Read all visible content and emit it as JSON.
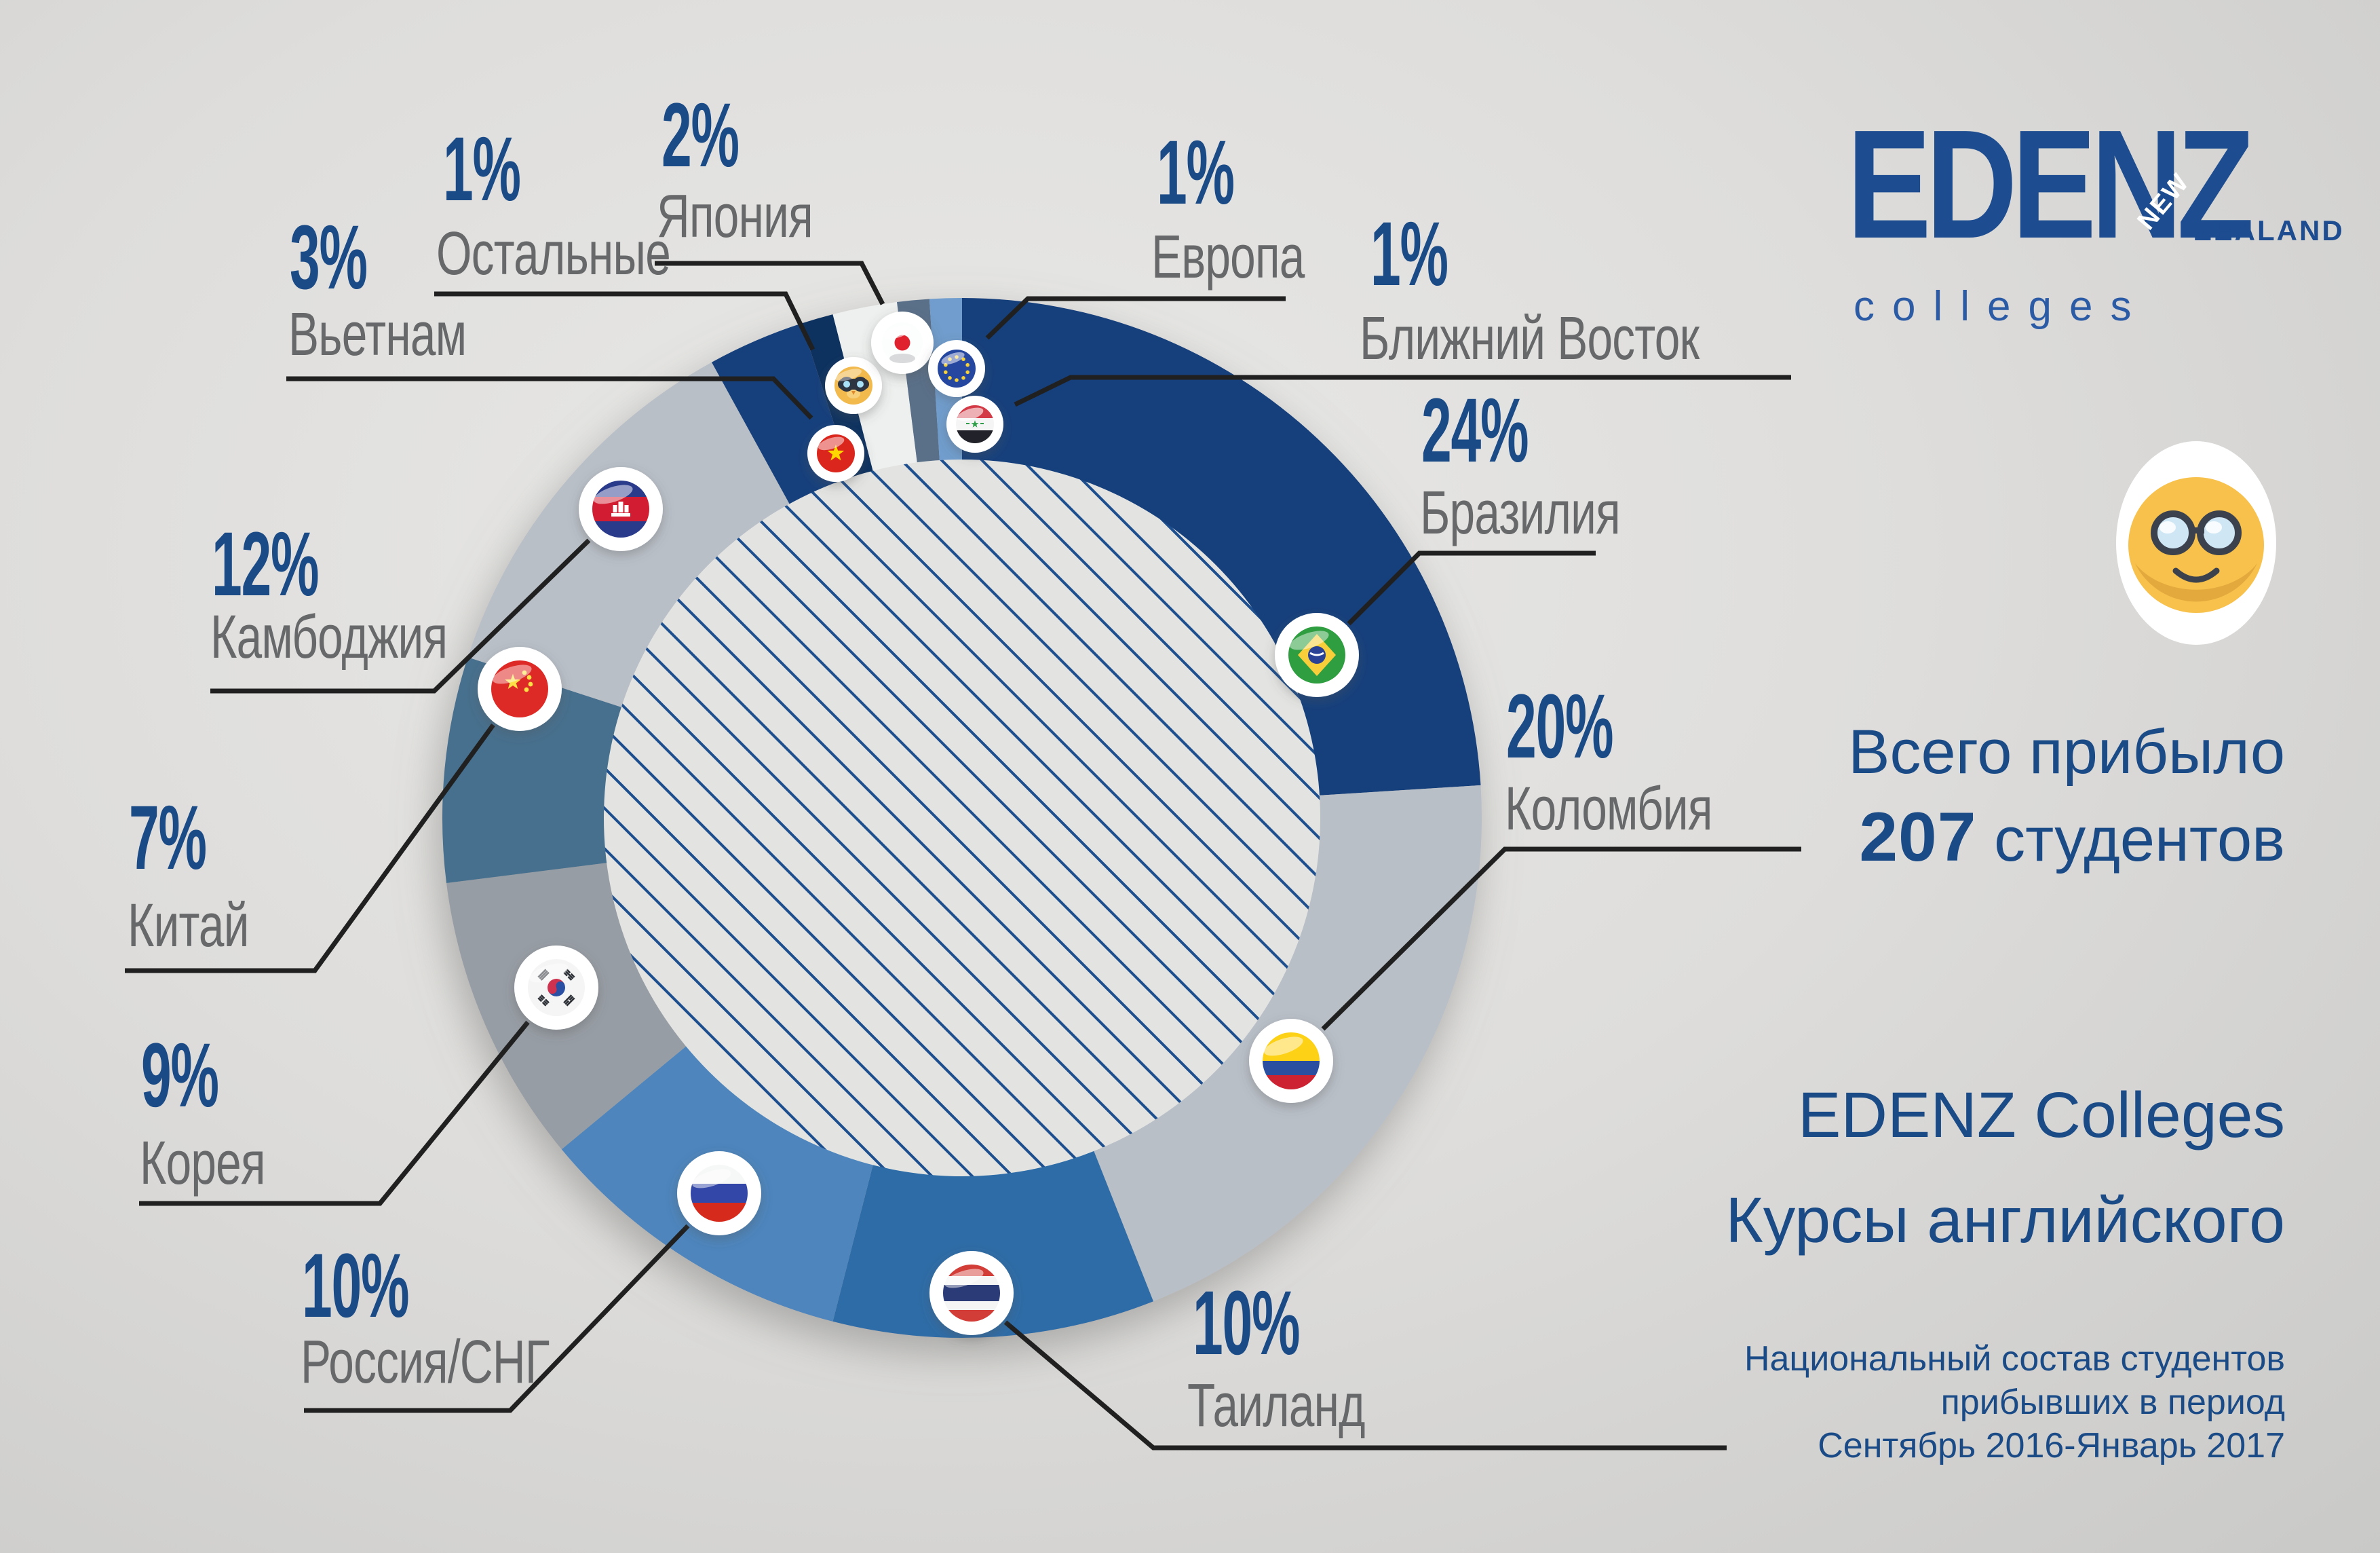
{
  "logo": {
    "brand": "EDENZ",
    "nz_top": "NEW",
    "nz_bottom": "ZEALAND",
    "sub": "colleges"
  },
  "summary": {
    "line1": "Всего прибыло",
    "total": "207",
    "students": "студентов"
  },
  "footer": {
    "title1": "EDENZ Colleges",
    "title2": "Курсы английского",
    "sub1": "Национальный состав студентов",
    "sub2": "прибывших в период",
    "sub3": "Сентябрь 2016-Январь 2017"
  },
  "style": {
    "accent_navy": "#1b4b87",
    "label_gray": "#66686a",
    "callout_black": "#202020",
    "background": "#dedddb",
    "stripe_blue": "#1d4e8e"
  },
  "chart_data": {
    "type": "pie",
    "variant": "donut",
    "units": "%",
    "total_students": 207,
    "start_angle_deg": 0,
    "direction": "clockwise",
    "center_pattern": "diagonal-stripes",
    "legend_position": "around-chart",
    "slices": [
      {
        "label": "Бразилия",
        "value": 24,
        "pct_label": "24%",
        "color": "#123f7c",
        "flag": "brazil"
      },
      {
        "label": "Коломбия",
        "value": 20,
        "pct_label": "20%",
        "color": "#b9bfc7",
        "flag": "colombia"
      },
      {
        "label": "Таиланд",
        "value": 10,
        "pct_label": "10%",
        "color": "#2d6ca7",
        "flag": "thailand"
      },
      {
        "label": "Россия/СНГ",
        "value": 10,
        "pct_label": "10%",
        "color": "#4d85bc",
        "flag": "russia"
      },
      {
        "label": "Корея",
        "value": 9,
        "pct_label": "9%",
        "color": "#979da4",
        "flag": "south-korea"
      },
      {
        "label": "Китай",
        "value": 7,
        "pct_label": "7%",
        "color": "#476f8e",
        "flag": "china"
      },
      {
        "label": "Камбоджия",
        "value": 12,
        "pct_label": "12%",
        "color": "#b9bfc7",
        "flag": "cambodia"
      },
      {
        "label": "Вьетнам",
        "value": 3,
        "pct_label": "3%",
        "color": "#123f7c",
        "flag": "vietnam"
      },
      {
        "label": "Остальные",
        "value": 1,
        "pct_label": "1%",
        "color": "#0c3160",
        "flag": "others-face"
      },
      {
        "label": "Япония",
        "value": 2,
        "pct_label": "2%",
        "color": "#eef0ef",
        "flag": "japan"
      },
      {
        "label": "Европа",
        "value": 1,
        "pct_label": "1%",
        "color": "#5a7089",
        "flag": "eu"
      },
      {
        "label": "Ближний Восток",
        "value": 1,
        "pct_label": "1%",
        "color": "#6f9dcd",
        "flag": "middle-east"
      }
    ]
  }
}
